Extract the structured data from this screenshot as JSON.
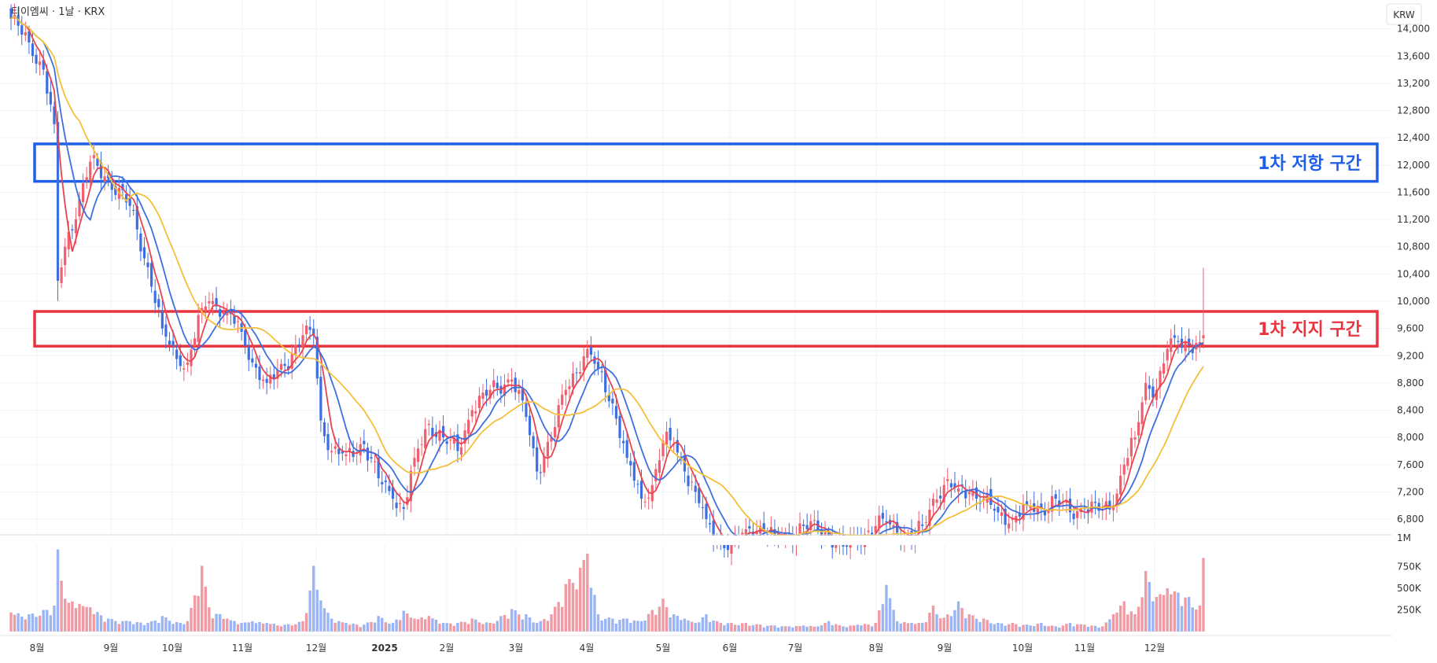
{
  "header": {
    "symbol_text": "티이엠씨 · 1날 · KRX",
    "currency": "KRW"
  },
  "colors": {
    "up": "#ef5f6e",
    "down": "#3d6fe0",
    "ma_fast": "#e8444f",
    "ma_mid": "#3d6fe0",
    "ma_slow": "#f5bf3a",
    "vol_up": "#f09aa3",
    "vol_down": "#9bb4f4",
    "support": "#e8343f",
    "resistance": "#1f5fe8"
  },
  "zones": {
    "resistance": {
      "label": "1차 저항 구간",
      "top": 12310,
      "bottom": 11760
    },
    "support": {
      "label": "1차 지지 구간",
      "top": 9850,
      "bottom": 9340
    }
  },
  "chart_data": {
    "type": "candlestick",
    "price_axis": {
      "min": 6570,
      "max": 14400,
      "ticks": [
        6800,
        7200,
        7600,
        8000,
        8400,
        8800,
        9200,
        9600,
        10000,
        10400,
        10800,
        11200,
        11600,
        12000,
        12400,
        12800,
        13200,
        13600,
        14000
      ],
      "tick_labels": [
        "6,800",
        "7,200",
        "7,600",
        "8,000",
        "8,400",
        "8,800",
        "9,200",
        "9,600",
        "10,000",
        "10,400",
        "10,800",
        "11,200",
        "11,600",
        "12,000",
        "12,400",
        "12,800",
        "13,200",
        "13,600",
        "14,000"
      ]
    },
    "volume_axis": {
      "max": 1000000,
      "ticks": [
        250000,
        500000,
        750000
      ],
      "tick_labels": [
        "250K",
        "500K",
        "750K"
      ],
      "top_label": "1M"
    },
    "x_axis": {
      "labels": [
        "8월",
        "9월",
        "10월",
        "11월",
        "12월",
        "2025",
        "2월",
        "3월",
        "4월",
        "5월",
        "6월",
        "7월",
        "8월",
        "9월",
        "10월",
        "11월",
        "12월"
      ]
    },
    "anchors": [
      {
        "bar": 0,
        "price": 14150,
        "vol": 220000
      },
      {
        "bar": 5,
        "price": 13800,
        "vol": 200000
      },
      {
        "bar": 9,
        "price": 13400,
        "vol": 250000
      },
      {
        "bar": 12,
        "price": 12600,
        "vol": 300000
      },
      {
        "bar": 13,
        "price": 10300,
        "vol": 950000
      },
      {
        "bar": 15,
        "price": 10800,
        "vol": 380000
      },
      {
        "bar": 19,
        "price": 11500,
        "vol": 320000
      },
      {
        "bar": 22,
        "price": 12050,
        "vol": 280000
      },
      {
        "bar": 27,
        "price": 11800,
        "vol": 150000
      },
      {
        "bar": 33,
        "price": 11400,
        "vol": 120000
      },
      {
        "bar": 38,
        "price": 10500,
        "vol": 100000
      },
      {
        "bar": 42,
        "price": 9600,
        "vol": 180000
      },
      {
        "bar": 47,
        "price": 9050,
        "vol": 100000
      },
      {
        "bar": 49,
        "price": 9100,
        "vol": 120000
      },
      {
        "bar": 53,
        "price": 9900,
        "vol": 760000
      },
      {
        "bar": 55,
        "price": 10000,
        "vol": 280000
      },
      {
        "bar": 60,
        "price": 9850,
        "vol": 150000
      },
      {
        "bar": 64,
        "price": 9550,
        "vol": 100000
      },
      {
        "bar": 67,
        "price": 9100,
        "vol": 120000
      },
      {
        "bar": 71,
        "price": 8800,
        "vol": 100000
      },
      {
        "bar": 76,
        "price": 9050,
        "vol": 80000
      },
      {
        "bar": 81,
        "price": 9500,
        "vol": 120000
      },
      {
        "bar": 84,
        "price": 9500,
        "vol": 760000
      },
      {
        "bar": 86,
        "price": 8250,
        "vol": 360000
      },
      {
        "bar": 89,
        "price": 7800,
        "vol": 150000
      },
      {
        "bar": 93,
        "price": 7750,
        "vol": 100000
      },
      {
        "bar": 98,
        "price": 7900,
        "vol": 80000
      },
      {
        "bar": 102,
        "price": 7400,
        "vol": 180000
      },
      {
        "bar": 106,
        "price": 7100,
        "vol": 100000
      },
      {
        "bar": 109,
        "price": 6950,
        "vol": 240000
      },
      {
        "bar": 112,
        "price": 7700,
        "vol": 150000
      },
      {
        "bar": 116,
        "price": 8200,
        "vol": 180000
      },
      {
        "bar": 120,
        "price": 8000,
        "vol": 100000
      },
      {
        "bar": 124,
        "price": 7800,
        "vol": 100000
      },
      {
        "bar": 128,
        "price": 8400,
        "vol": 150000
      },
      {
        "bar": 133,
        "price": 8700,
        "vol": 100000
      },
      {
        "bar": 139,
        "price": 8850,
        "vol": 260000
      },
      {
        "bar": 143,
        "price": 8300,
        "vol": 200000
      },
      {
        "bar": 146,
        "price": 7500,
        "vol": 100000
      },
      {
        "bar": 150,
        "price": 8000,
        "vol": 200000
      },
      {
        "bar": 154,
        "price": 8700,
        "vol": 550000
      },
      {
        "bar": 160,
        "price": 9300,
        "vol": 900000
      },
      {
        "bar": 163,
        "price": 9000,
        "vol": 200000
      },
      {
        "bar": 167,
        "price": 8500,
        "vol": 150000
      },
      {
        "bar": 171,
        "price": 7700,
        "vol": 150000
      },
      {
        "bar": 175,
        "price": 7100,
        "vol": 120000
      },
      {
        "bar": 178,
        "price": 7300,
        "vol": 250000
      },
      {
        "bar": 181,
        "price": 7950,
        "vol": 380000
      },
      {
        "bar": 184,
        "price": 7900,
        "vol": 200000
      },
      {
        "bar": 187,
        "price": 7500,
        "vol": 150000
      },
      {
        "bar": 190,
        "price": 7200,
        "vol": 100000
      },
      {
        "bar": 193,
        "price": 6800,
        "vol": 200000
      },
      {
        "bar": 196,
        "price": 6500,
        "vol": 120000
      },
      {
        "bar": 200,
        "price": 6420,
        "vol": 100000
      },
      {
        "bar": 204,
        "price": 6650,
        "vol": 100000
      },
      {
        "bar": 208,
        "price": 6700,
        "vol": 80000
      },
      {
        "bar": 212,
        "price": 6550,
        "vol": 70000
      },
      {
        "bar": 216,
        "price": 6550,
        "vol": 60000
      },
      {
        "bar": 220,
        "price": 6700,
        "vol": 70000
      },
      {
        "bar": 224,
        "price": 6650,
        "vol": 60000
      },
      {
        "bar": 227,
        "price": 6550,
        "vol": 120000
      },
      {
        "bar": 231,
        "price": 6400,
        "vol": 60000
      },
      {
        "bar": 235,
        "price": 6500,
        "vol": 80000
      },
      {
        "bar": 240,
        "price": 6700,
        "vol": 100000
      },
      {
        "bar": 243,
        "price": 6750,
        "vol": 540000
      },
      {
        "bar": 246,
        "price": 6600,
        "vol": 120000
      },
      {
        "bar": 250,
        "price": 6500,
        "vol": 100000
      },
      {
        "bar": 253,
        "price": 6700,
        "vol": 100000
      },
      {
        "bar": 256,
        "price": 7100,
        "vol": 300000
      },
      {
        "bar": 259,
        "price": 7300,
        "vol": 160000
      },
      {
        "bar": 263,
        "price": 7250,
        "vol": 350000
      },
      {
        "bar": 266,
        "price": 7200,
        "vol": 200000
      },
      {
        "bar": 270,
        "price": 7100,
        "vol": 150000
      },
      {
        "bar": 274,
        "price": 6900,
        "vol": 100000
      },
      {
        "bar": 278,
        "price": 6800,
        "vol": 100000
      },
      {
        "bar": 282,
        "price": 7000,
        "vol": 80000
      },
      {
        "bar": 286,
        "price": 6950,
        "vol": 100000
      },
      {
        "bar": 290,
        "price": 7100,
        "vol": 60000
      },
      {
        "bar": 294,
        "price": 6900,
        "vol": 100000
      },
      {
        "bar": 298,
        "price": 6950,
        "vol": 80000
      },
      {
        "bar": 303,
        "price": 6950,
        "vol": 60000
      },
      {
        "bar": 306,
        "price": 7000,
        "vol": 200000
      },
      {
        "bar": 309,
        "price": 7600,
        "vol": 350000
      },
      {
        "bar": 312,
        "price": 8000,
        "vol": 200000
      },
      {
        "bar": 315,
        "price": 8800,
        "vol": 700000
      },
      {
        "bar": 318,
        "price": 8700,
        "vol": 400000
      },
      {
        "bar": 321,
        "price": 9300,
        "vol": 500000
      },
      {
        "bar": 324,
        "price": 9400,
        "vol": 450000
      },
      {
        "bar": 327,
        "price": 9350,
        "vol": 400000
      },
      {
        "bar": 330,
        "price": 9400,
        "vol": 300000
      },
      {
        "bar": 331,
        "price": 9500,
        "vol": 850000
      }
    ],
    "last_bar_high": 10490,
    "last_bar_index": 331
  }
}
